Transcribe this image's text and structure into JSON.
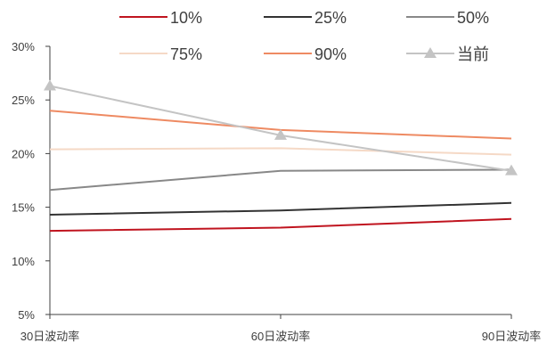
{
  "chart_data": {
    "type": "line",
    "categories": [
      "30日波动率",
      "60日波动率",
      "90日波动率"
    ],
    "ylim": [
      0.05,
      0.3
    ],
    "yticks": [
      0.05,
      0.1,
      0.15,
      0.2,
      0.25,
      0.3
    ],
    "ytick_labels": [
      "5%",
      "10%",
      "15%",
      "20%",
      "25%",
      "30%"
    ],
    "grid": false,
    "legend_position": "top",
    "series": [
      {
        "name": "10%",
        "color": "#c0141f",
        "marker": "none",
        "values": [
          0.128,
          0.131,
          0.139
        ]
      },
      {
        "name": "25%",
        "color": "#333333",
        "marker": "none",
        "values": [
          0.143,
          0.147,
          0.154
        ]
      },
      {
        "name": "50%",
        "color": "#888888",
        "marker": "none",
        "values": [
          0.166,
          0.184,
          0.185
        ]
      },
      {
        "name": "75%",
        "color": "#f5d9c6",
        "marker": "none",
        "values": [
          0.204,
          0.205,
          0.199
        ]
      },
      {
        "name": "90%",
        "color": "#ee8a62",
        "marker": "none",
        "values": [
          0.24,
          0.222,
          0.214
        ]
      },
      {
        "name": "当前",
        "color": "#c4c4c4",
        "marker": "triangle",
        "values": [
          0.263,
          0.217,
          0.184
        ]
      }
    ]
  }
}
